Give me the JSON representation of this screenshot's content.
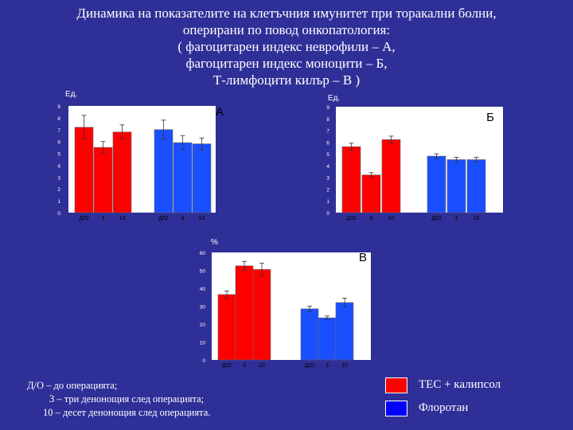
{
  "title_lines": [
    "Динамика на показателите на клетъчния имунитет при торакални болни,",
    "оперирани по повод онкопатология:",
    "( фагоцитарен индекс неврофили – А,",
    "фагоцитарен индекс моноцити – Б,",
    "Т-лимфоцити килър – В )"
  ],
  "notes": [
    "Д/О – до операцията;",
    "3 – три денонощия след операцията;",
    "10 – десет денонощия след операцията."
  ],
  "legend": [
    {
      "label": "ТЕС + калипсол",
      "color": "#ff0000"
    },
    {
      "label": "Флоротан",
      "color": "#0000ff"
    }
  ],
  "colors": {
    "group1": "#ff0000",
    "group2": "#1a4fff",
    "plot_bg": "#ffffff",
    "text": "#ffffff"
  },
  "chart_data": [
    {
      "type": "bar",
      "panel_label": "А",
      "ylabel": "Ед.",
      "ylim": [
        0,
        9
      ],
      "yticks": [
        0,
        1,
        2,
        3,
        4,
        5,
        6,
        7,
        8,
        9
      ],
      "categories": [
        "Д/О",
        "3",
        "10"
      ],
      "series": [
        {
          "name": "ТЕС + калипсол",
          "values": [
            7.2,
            5.5,
            6.8
          ],
          "errors": [
            1.0,
            0.5,
            0.6
          ]
        },
        {
          "name": "Флоротан",
          "values": [
            7.0,
            5.9,
            5.8
          ],
          "errors": [
            0.8,
            0.6,
            0.5
          ]
        }
      ]
    },
    {
      "type": "bar",
      "panel_label": "Б",
      "ylabel": "Ед.",
      "ylim": [
        0,
        9
      ],
      "yticks": [
        0,
        1,
        2,
        3,
        4,
        5,
        6,
        7,
        8,
        9
      ],
      "categories": [
        "Д/О",
        "3",
        "10"
      ],
      "series": [
        {
          "name": "ТЕС + калипсол",
          "values": [
            5.6,
            3.2,
            6.2
          ],
          "errors": [
            0.3,
            0.2,
            0.3
          ]
        },
        {
          "name": "Флоротан",
          "values": [
            4.8,
            4.5,
            4.5
          ],
          "errors": [
            0.2,
            0.2,
            0.2
          ]
        }
      ]
    },
    {
      "type": "bar",
      "panel_label": "В",
      "ylabel": "%",
      "ylim": [
        0,
        60
      ],
      "yticks": [
        0,
        10,
        20,
        30,
        40,
        50,
        60
      ],
      "categories": [
        "Д/О",
        "3",
        "10"
      ],
      "series": [
        {
          "name": "ТЕС + калипсол",
          "values": [
            36.5,
            52.5,
            50.5
          ],
          "errors": [
            2.0,
            2.5,
            3.5
          ]
        },
        {
          "name": "Флоротан",
          "values": [
            28.5,
            23.5,
            32.0
          ],
          "errors": [
            1.5,
            1.0,
            2.5
          ]
        }
      ]
    }
  ]
}
